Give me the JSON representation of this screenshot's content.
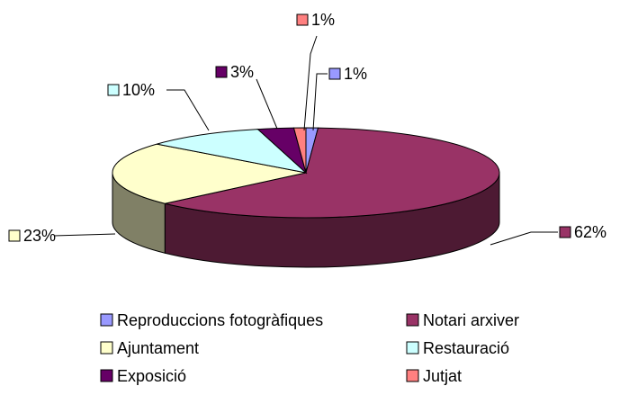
{
  "chart_data": {
    "type": "pie",
    "categories": [
      "Reproduccions fotogràfiques",
      "Notari arxiver",
      "Ajuntament",
      "Restauració",
      "Exposició",
      "Jutjat"
    ],
    "values": [
      1,
      62,
      23,
      10,
      3,
      1
    ],
    "value_labels": [
      "1%",
      "62%",
      "23%",
      "10%",
      "3%",
      "1%"
    ],
    "colors": [
      "#9999ff",
      "#993366",
      "#ffffcc",
      "#ccffff",
      "#660066",
      "#ff8080"
    ],
    "legend": "bottom"
  }
}
